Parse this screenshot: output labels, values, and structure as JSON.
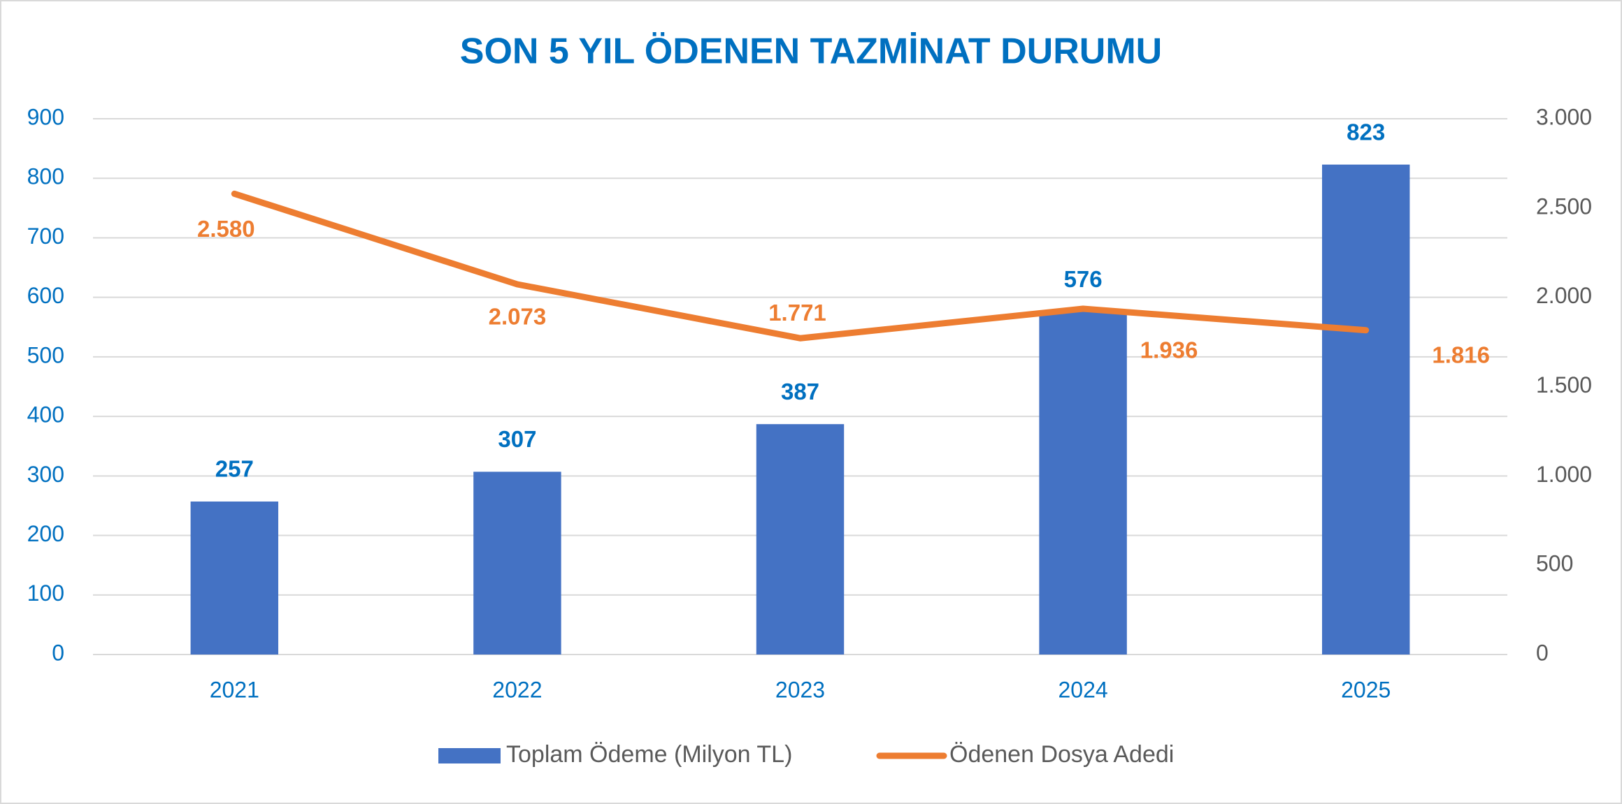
{
  "chart_data": {
    "type": "bar-line",
    "title": "SON 5 YIL ÖDENEN TAZMİNAT DURUMU",
    "categories": [
      "2021",
      "2022",
      "2023",
      "2024",
      "2025"
    ],
    "series": [
      {
        "name": "Toplam Ödeme (Milyon TL)",
        "type": "bar",
        "color": "#4472c4",
        "values": [
          257,
          307,
          387,
          576,
          823
        ]
      },
      {
        "name": "Ödenen Dosya Adedi",
        "type": "line",
        "axis": "y2",
        "color": "#ed7d31",
        "values": [
          2580,
          2073,
          1771,
          1936,
          1816
        ],
        "value_labels": [
          "2.580",
          "2.073",
          "1.771",
          "1.936",
          "1.816"
        ]
      }
    ],
    "ylim": [
      0,
      900
    ],
    "yticks": [
      0,
      100,
      200,
      300,
      400,
      500,
      600,
      700,
      800,
      900
    ],
    "y2lim": [
      0,
      3000
    ],
    "y2ticks": [
      0,
      500,
      {
        "value": 1000,
        "label": "1.000"
      },
      {
        "value": 1500,
        "label": "1.500"
      },
      {
        "value": 2000,
        "label": "2.000"
      },
      {
        "value": 2500,
        "label": "2.500"
      },
      {
        "value": 3000,
        "label": "3.000"
      }
    ],
    "grid": true,
    "legend": "bottom"
  }
}
